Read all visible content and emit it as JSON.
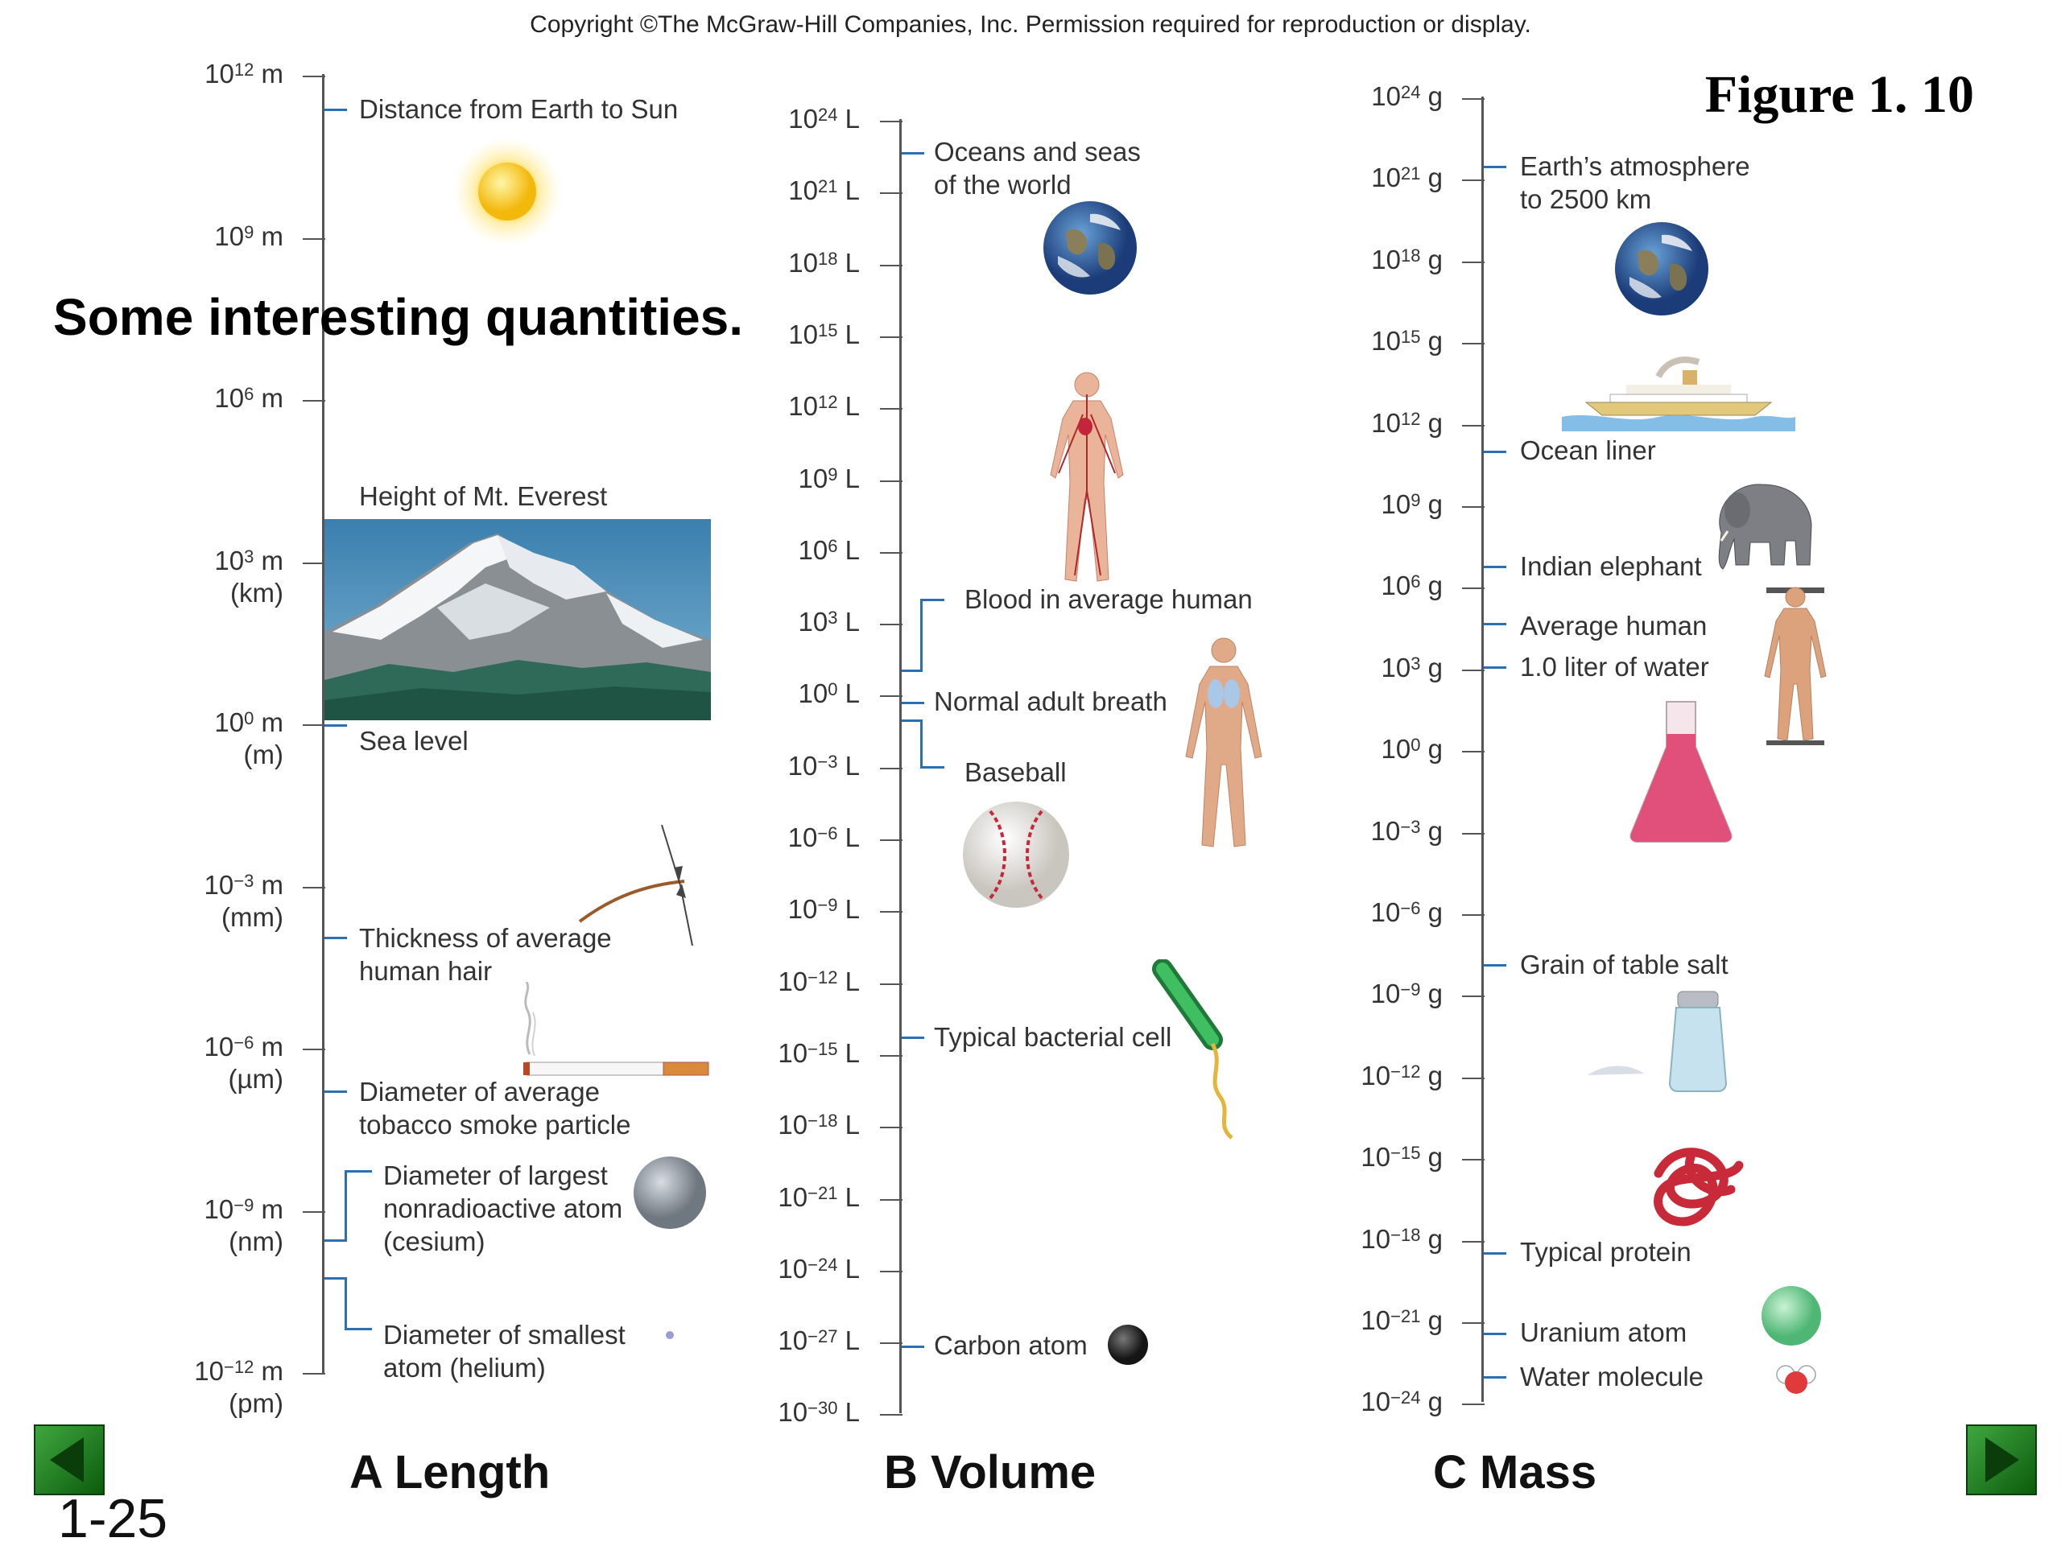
{
  "header": {
    "copyright": "Copyright ©The McGraw-Hill Companies, Inc.  Permission required for reproduction or display.",
    "figure_label": "Figure 1. 10"
  },
  "title": "Some interesting quantities.",
  "slide_number": "1-25",
  "panels": {
    "length": {
      "title": "A  Length",
      "ticks": [
        {
          "mant": "10",
          "exp": "12",
          "unit": "m",
          "sub": ""
        },
        {
          "mant": "10",
          "exp": "9",
          "unit": "m",
          "sub": ""
        },
        {
          "mant": "10",
          "exp": "6",
          "unit": "m",
          "sub": ""
        },
        {
          "mant": "10",
          "exp": "3",
          "unit": "m",
          "sub": "(km)"
        },
        {
          "mant": "10",
          "exp": "0",
          "unit": "m",
          "sub": "(m)"
        },
        {
          "mant": "10",
          "exp": "−3",
          "unit": "m",
          "sub": "(mm)"
        },
        {
          "mant": "10",
          "exp": "−6",
          "unit": "m",
          "sub": "(µm)"
        },
        {
          "mant": "10",
          "exp": "−9",
          "unit": "m",
          "sub": "(nm)"
        },
        {
          "mant": "10",
          "exp": "−12",
          "unit": "m",
          "sub": "(pm)"
        }
      ],
      "annotations": {
        "sun": "Distance from Earth to Sun",
        "everest": "Height of Mt. Everest",
        "sea": "Sea level",
        "hair_1": "Thickness of average",
        "hair_2": "human hair",
        "smoke_1": "Diameter of average",
        "smoke_2": "tobacco smoke particle",
        "cesium_1": "Diameter of largest",
        "cesium_2": "nonradioactive atom",
        "cesium_3": "(cesium)",
        "helium_1": "Diameter of smallest",
        "helium_2": "atom (helium)"
      }
    },
    "volume": {
      "title": "B  Volume",
      "ticks": [
        {
          "mant": "10",
          "exp": "24",
          "unit": "L"
        },
        {
          "mant": "10",
          "exp": "21",
          "unit": "L"
        },
        {
          "mant": "10",
          "exp": "18",
          "unit": "L"
        },
        {
          "mant": "10",
          "exp": "15",
          "unit": "L"
        },
        {
          "mant": "10",
          "exp": "12",
          "unit": "L"
        },
        {
          "mant": "10",
          "exp": "9",
          "unit": "L"
        },
        {
          "mant": "10",
          "exp": "6",
          "unit": "L"
        },
        {
          "mant": "10",
          "exp": "3",
          "unit": "L"
        },
        {
          "mant": "10",
          "exp": "0",
          "unit": "L"
        },
        {
          "mant": "10",
          "exp": "−3",
          "unit": "L"
        },
        {
          "mant": "10",
          "exp": "−6",
          "unit": "L"
        },
        {
          "mant": "10",
          "exp": "−9",
          "unit": "L"
        },
        {
          "mant": "10",
          "exp": "−12",
          "unit": "L"
        },
        {
          "mant": "10",
          "exp": "−15",
          "unit": "L"
        },
        {
          "mant": "10",
          "exp": "−18",
          "unit": "L"
        },
        {
          "mant": "10",
          "exp": "−21",
          "unit": "L"
        },
        {
          "mant": "10",
          "exp": "−24",
          "unit": "L"
        },
        {
          "mant": "10",
          "exp": "−27",
          "unit": "L"
        },
        {
          "mant": "10",
          "exp": "−30",
          "unit": "L"
        }
      ],
      "annotations": {
        "oceans_1": "Oceans and seas",
        "oceans_2": "of the world",
        "blood": "Blood in average human",
        "breath": "Normal adult breath",
        "baseball": "Baseball",
        "bacteria": "Typical bacterial cell",
        "carbon": "Carbon atom"
      }
    },
    "mass": {
      "title": "C  Mass",
      "ticks": [
        {
          "mant": "10",
          "exp": "24",
          "unit": "g"
        },
        {
          "mant": "10",
          "exp": "21",
          "unit": "g"
        },
        {
          "mant": "10",
          "exp": "18",
          "unit": "g"
        },
        {
          "mant": "10",
          "exp": "15",
          "unit": "g"
        },
        {
          "mant": "10",
          "exp": "12",
          "unit": "g"
        },
        {
          "mant": "10",
          "exp": "9",
          "unit": "g"
        },
        {
          "mant": "10",
          "exp": "6",
          "unit": "g"
        },
        {
          "mant": "10",
          "exp": "3",
          "unit": "g"
        },
        {
          "mant": "10",
          "exp": "0",
          "unit": "g"
        },
        {
          "mant": "10",
          "exp": "−3",
          "unit": "g"
        },
        {
          "mant": "10",
          "exp": "−6",
          "unit": "g"
        },
        {
          "mant": "10",
          "exp": "−9",
          "unit": "g"
        },
        {
          "mant": "10",
          "exp": "−12",
          "unit": "g"
        },
        {
          "mant": "10",
          "exp": "−15",
          "unit": "g"
        },
        {
          "mant": "10",
          "exp": "−18",
          "unit": "g"
        },
        {
          "mant": "10",
          "exp": "−21",
          "unit": "g"
        },
        {
          "mant": "10",
          "exp": "−24",
          "unit": "g"
        }
      ],
      "annotations": {
        "atmo_1": "Earth’s atmosphere",
        "atmo_2": "to 2500 km",
        "liner": "Ocean liner",
        "elephant": "Indian elephant",
        "human": "Average human",
        "water": "1.0 liter of water",
        "salt": "Grain of table salt",
        "protein": "Typical protein",
        "uranium": "Uranium atom",
        "molecule": "Water molecule"
      }
    }
  },
  "nav": {
    "prev_icon": "triangle-left-icon",
    "next_icon": "triangle-right-icon"
  }
}
